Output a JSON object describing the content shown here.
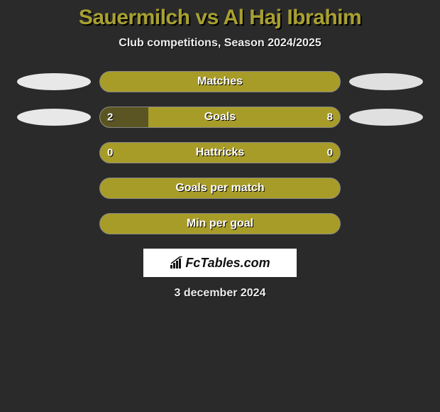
{
  "title": "Sauermilch vs Al Haj Ibrahim",
  "subtitle": "Club competitions, Season 2024/2025",
  "colors": {
    "background": "#2a2a2a",
    "title_color": "#a8a030",
    "bar_fill": "#a89c28",
    "bar_left_fill": "#5a5522",
    "oval_left": "#e8e8e8",
    "oval_right": "#e0e0e0",
    "text_light": "#eeeeee"
  },
  "rows": [
    {
      "label": "Matches",
      "left": "",
      "right": "",
      "left_pct": 0,
      "show_ovals": true,
      "show_vals": false
    },
    {
      "label": "Goals",
      "left": "2",
      "right": "8",
      "left_pct": 20,
      "show_ovals": true,
      "show_vals": true
    },
    {
      "label": "Hattricks",
      "left": "0",
      "right": "0",
      "left_pct": 0,
      "show_ovals": false,
      "show_vals": true
    },
    {
      "label": "Goals per match",
      "left": "",
      "right": "",
      "left_pct": 0,
      "show_ovals": false,
      "show_vals": false
    },
    {
      "label": "Min per goal",
      "left": "",
      "right": "",
      "left_pct": 0,
      "show_ovals": false,
      "show_vals": false
    }
  ],
  "logo_text": "FcTables.com",
  "date": "3 december 2024",
  "typography": {
    "title_fontsize": 30,
    "subtitle_fontsize": 16,
    "bar_label_fontsize": 16,
    "date_fontsize": 16
  }
}
